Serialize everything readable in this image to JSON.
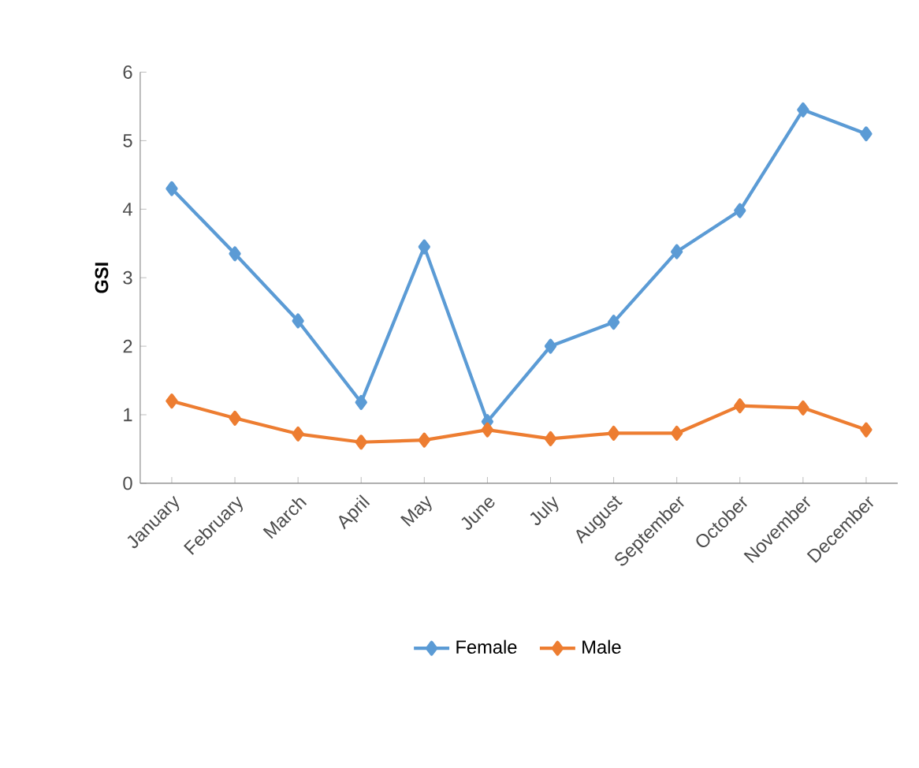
{
  "chart_data": {
    "type": "line",
    "ylabel": "GSI",
    "categories": [
      "January",
      "February",
      "March",
      "April",
      "May",
      "June",
      "July",
      "August",
      "September",
      "October",
      "November",
      "December"
    ],
    "series": [
      {
        "name": "Female",
        "color": "#5b9bd5",
        "values": [
          4.3,
          3.35,
          2.37,
          1.18,
          3.45,
          0.9,
          2.0,
          2.35,
          3.38,
          3.98,
          5.45,
          5.1
        ]
      },
      {
        "name": "Male",
        "color": "#ed7d31",
        "values": [
          1.2,
          0.95,
          0.72,
          0.6,
          0.63,
          0.78,
          0.65,
          0.73,
          0.73,
          1.13,
          1.1,
          0.78
        ]
      }
    ],
    "ylim": [
      0,
      6
    ],
    "yticks": [
      0,
      1,
      2,
      3,
      4,
      5,
      6
    ],
    "marker": "diamond",
    "line_style": "solid",
    "grid": false,
    "legend": "bottom"
  }
}
